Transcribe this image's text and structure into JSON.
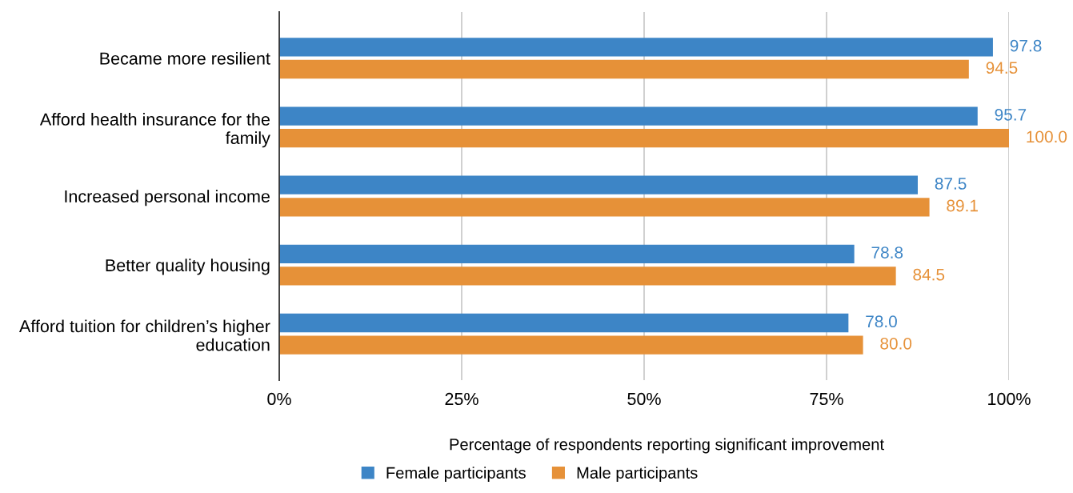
{
  "chart_data": {
    "type": "bar",
    "orientation": "horizontal",
    "categories": [
      "Became more resilient",
      "Afford health insurance for the\nfamily",
      "Increased personal income",
      "Better quality housing",
      "Afford tuition for children’s higher\neducation"
    ],
    "series": [
      {
        "name": "Female participants",
        "color": "#3d85c6",
        "values": [
          97.8,
          95.7,
          87.5,
          78.8,
          78.0
        ],
        "value_labels": [
          "97.8",
          "95.7",
          "87.5",
          "78.8",
          "78.0"
        ]
      },
      {
        "name": "Male participants",
        "color": "#e69138",
        "values": [
          94.5,
          100.0,
          89.1,
          84.5,
          80.0
        ],
        "value_labels": [
          "94.5",
          "100.0",
          "89.1",
          "84.5",
          "80.0"
        ]
      }
    ],
    "xlabel": "Percentage of respondents reporting significant improvement",
    "xlim": [
      0,
      100
    ],
    "xticks": [
      {
        "value": 0,
        "label": "0%"
      },
      {
        "value": 25,
        "label": "25%"
      },
      {
        "value": 50,
        "label": "50%"
      },
      {
        "value": 75,
        "label": "75%"
      },
      {
        "value": 100,
        "label": "100%"
      }
    ],
    "grid": "x",
    "legend": "bottom"
  }
}
